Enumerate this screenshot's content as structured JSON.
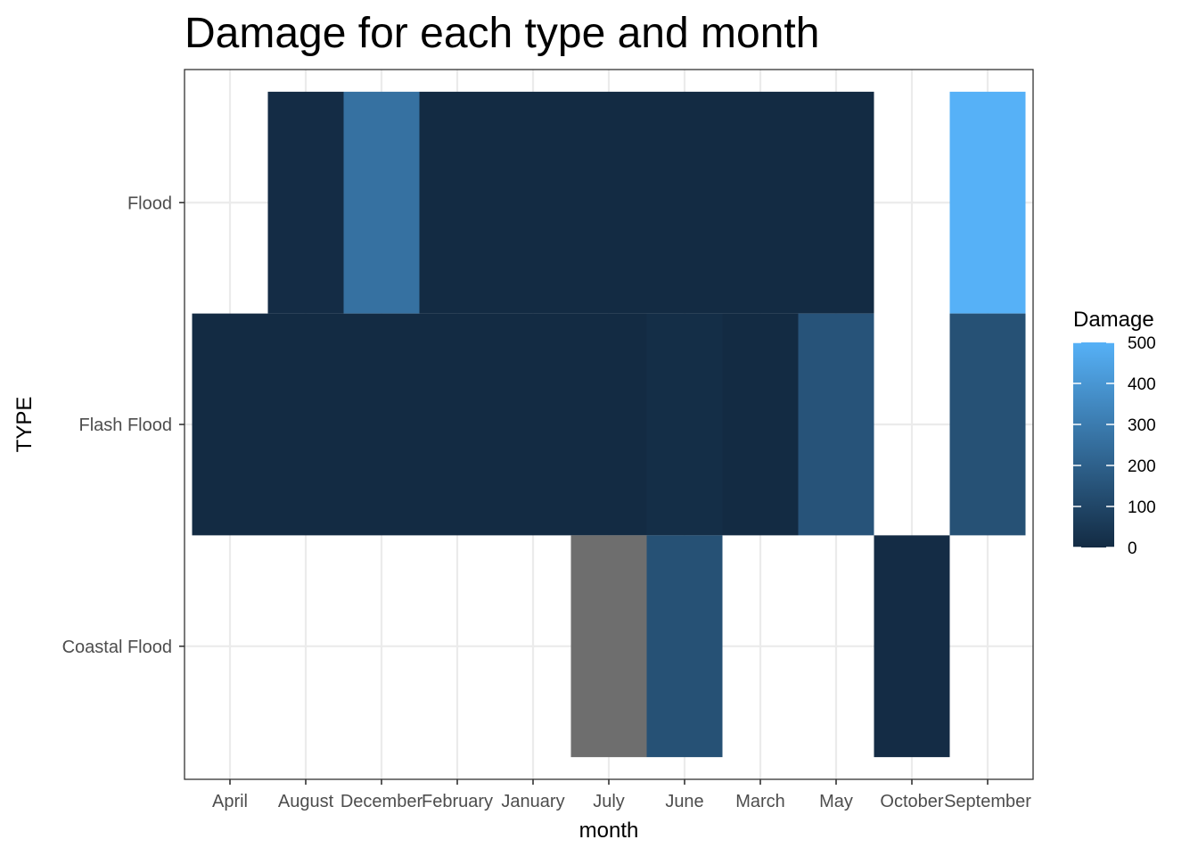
{
  "chart_data": {
    "type": "heatmap",
    "title": "Damage for each type and month",
    "xlabel": "month",
    "ylabel": "TYPE",
    "x_categories": [
      "April",
      "August",
      "December",
      "February",
      "January",
      "July",
      "June",
      "March",
      "May",
      "October",
      "September"
    ],
    "y_categories": [
      "Coastal Flood",
      "Flash Flood",
      "Flood"
    ],
    "cells": [
      {
        "type": "Flood",
        "month": "August",
        "value": 5
      },
      {
        "type": "Flood",
        "month": "December",
        "value": 260
      },
      {
        "type": "Flood",
        "month": "February",
        "value": 0
      },
      {
        "type": "Flood",
        "month": "January",
        "value": 0
      },
      {
        "type": "Flood",
        "month": "July",
        "value": 0
      },
      {
        "type": "Flood",
        "month": "June",
        "value": 0
      },
      {
        "type": "Flood",
        "month": "March",
        "value": 0
      },
      {
        "type": "Flood",
        "month": "May",
        "value": 0
      },
      {
        "type": "Flood",
        "month": "September",
        "value": 500
      },
      {
        "type": "Flash Flood",
        "month": "April",
        "value": 0
      },
      {
        "type": "Flash Flood",
        "month": "August",
        "value": 0
      },
      {
        "type": "Flash Flood",
        "month": "December",
        "value": 0
      },
      {
        "type": "Flash Flood",
        "month": "February",
        "value": 0
      },
      {
        "type": "Flash Flood",
        "month": "January",
        "value": 0
      },
      {
        "type": "Flash Flood",
        "month": "July",
        "value": 0
      },
      {
        "type": "Flash Flood",
        "month": "June",
        "value": 10
      },
      {
        "type": "Flash Flood",
        "month": "March",
        "value": 0
      },
      {
        "type": "Flash Flood",
        "month": "May",
        "value": 150
      },
      {
        "type": "Flash Flood",
        "month": "September",
        "value": 140
      },
      {
        "type": "Coastal Flood",
        "month": "July",
        "value": null
      },
      {
        "type": "Coastal Flood",
        "month": "June",
        "value": 140
      },
      {
        "type": "Coastal Flood",
        "month": "October",
        "value": 5
      }
    ],
    "legend": {
      "title": "Damage",
      "position": "right",
      "breaks": [
        0,
        100,
        200,
        300,
        400,
        500
      ],
      "range": [
        0,
        500
      ],
      "low_color": "#132B43",
      "high_color": "#56B1F7",
      "na_color": "#6E6E6E"
    },
    "grid": true
  }
}
